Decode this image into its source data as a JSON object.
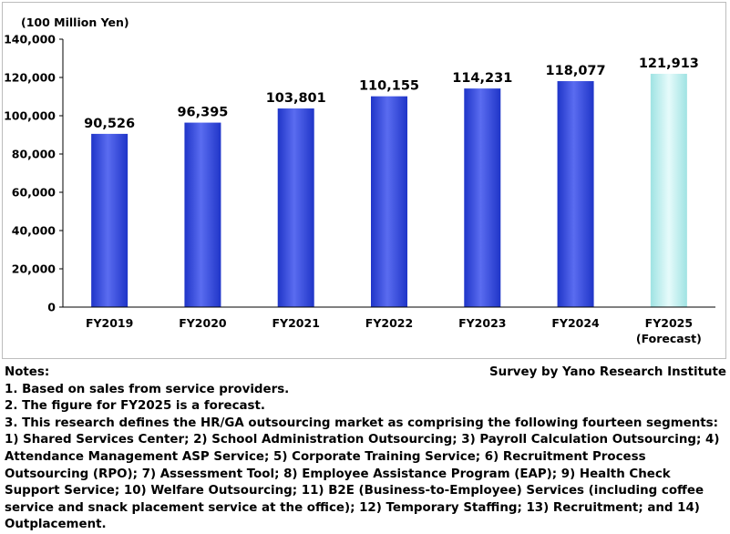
{
  "chart_data": {
    "type": "bar",
    "unit_label": "(100 Million Yen)",
    "categories": [
      "FY2019",
      "FY2020",
      "FY2021",
      "FY2022",
      "FY2023",
      "FY2024",
      "FY2025"
    ],
    "category_sublabels": [
      "",
      "",
      "",
      "",
      "",
      "",
      "(Forecast)"
    ],
    "values": [
      90526,
      96395,
      103801,
      110155,
      114231,
      118077,
      121913
    ],
    "value_labels": [
      "90,526",
      "96,395",
      "103,801",
      "110,155",
      "114,231",
      "118,077",
      "121,913"
    ],
    "forecast": [
      false,
      false,
      false,
      false,
      false,
      false,
      true
    ],
    "ylim": [
      0,
      140000
    ],
    "yticks": [
      0,
      20000,
      40000,
      60000,
      80000,
      100000,
      120000,
      140000
    ],
    "ytick_labels": [
      "0",
      "20,000",
      "40,000",
      "60,000",
      "80,000",
      "100,000",
      "120,000",
      "140,000"
    ],
    "grid": false,
    "colors": {
      "actual": "#1f35c8",
      "actual_highlight": "#5a6cf0",
      "forecast": "#9fe3e3",
      "forecast_highlight": "#e6fbfb"
    }
  },
  "notes": {
    "heading": "Notes:",
    "lines": [
      "1. Based on sales from service providers.",
      "2. The figure for FY2025 is a forecast."
    ],
    "definition": "3. This research defines the HR/GA outsourcing market as comprising the following fourteen segments: 1) Shared Services Center; 2) School Administration Outsourcing; 3) Payroll Calculation Outsourcing; 4) Attendance Management ASP Service; 5) Corporate Training Service; 6) Recruitment Process Outsourcing (RPO); 7) Assessment Tool; 8) Employee Assistance Program (EAP); 9) Health Check Support Service; 10) Welfare Outsourcing; 11) B2E (Business-to-Employee) Services (including coffee service and snack placement service at the office); 12) Temporary Staffing; 13) Recruitment; and 14) Outplacement."
  },
  "source": "Survey by Yano Research Institute"
}
